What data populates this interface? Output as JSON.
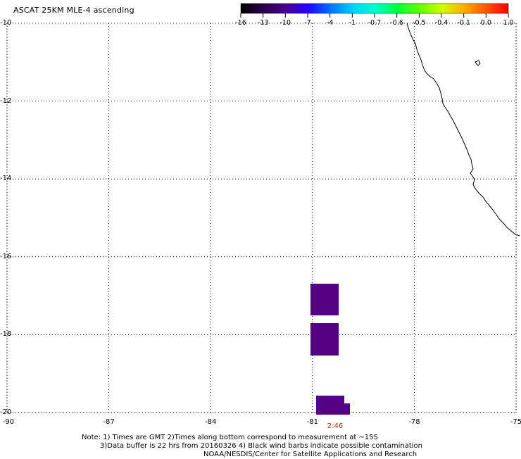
{
  "title": "ASCAT 25KM MLE-4 ascending",
  "colorbar": {
    "tick_labels": [
      "-16",
      "-13",
      "-10",
      "-7",
      "-4",
      "-1",
      "-0.7",
      "-0.6",
      "-0.5",
      "-0.4",
      "-0.1",
      "0.0",
      "1.0"
    ],
    "colors": [
      "#000000",
      "#2a0048",
      "#4b0090",
      "#2000ff",
      "#006cff",
      "#00d0ff",
      "#00ffd0",
      "#00ff40",
      "#60ff00",
      "#d0ff00",
      "#ffb000",
      "#ff5000",
      "#ff0000"
    ]
  },
  "map": {
    "lat_labels": [
      "-10",
      "-12",
      "-14",
      "-16",
      "-18",
      "-20"
    ],
    "lon_labels": [
      "-90",
      "-87",
      "-84",
      "-81",
      "-78",
      "-75"
    ],
    "lat_range": [
      -20,
      -10
    ],
    "lon_range": [
      -90,
      -75
    ],
    "grid": true,
    "swath_color": "#540080",
    "time_label": "2:46"
  },
  "notes": {
    "line1": "Note: 1) Times are GMT 2)Times along bottom correspond to measurement at ~15S",
    "line2": "3)Data buffer is 22 hrs from 20160326 4) Black wind barbs indicate possible contamination",
    "line3": "NOAA/NESDIS/Center for Satellite Applications and Research"
  }
}
